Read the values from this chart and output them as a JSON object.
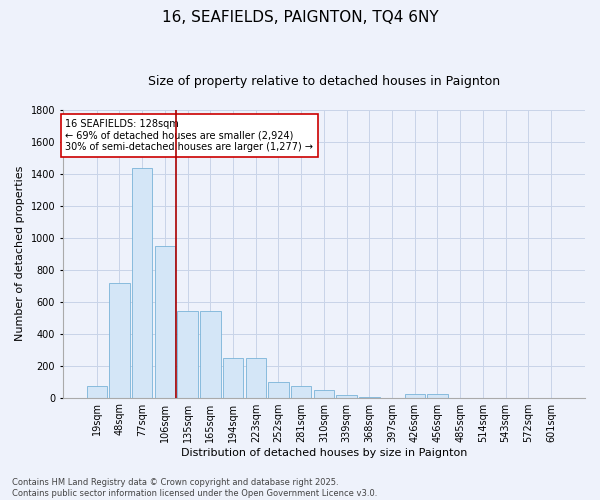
{
  "title": "16, SEAFIELDS, PAIGNTON, TQ4 6NY",
  "subtitle": "Size of property relative to detached houses in Paignton",
  "xlabel": "Distribution of detached houses by size in Paignton",
  "ylabel": "Number of detached properties",
  "categories": [
    "19sqm",
    "48sqm",
    "77sqm",
    "106sqm",
    "135sqm",
    "165sqm",
    "194sqm",
    "223sqm",
    "252sqm",
    "281sqm",
    "310sqm",
    "339sqm",
    "368sqm",
    "397sqm",
    "426sqm",
    "456sqm",
    "485sqm",
    "514sqm",
    "543sqm",
    "572sqm",
    "601sqm"
  ],
  "values": [
    75,
    720,
    1440,
    950,
    540,
    540,
    250,
    250,
    100,
    75,
    50,
    15,
    5,
    0,
    20,
    20,
    0,
    0,
    0,
    0,
    0
  ],
  "bar_color": "#d4e6f7",
  "bar_edge_color": "#7ab4d8",
  "vertical_line_x": 3.5,
  "annotation_text": "16 SEAFIELDS: 128sqm\n← 69% of detached houses are smaller (2,924)\n30% of semi-detached houses are larger (1,277) →",
  "annotation_box_color": "#ffffff",
  "annotation_box_edge": "#cc0000",
  "vline_color": "#aa0000",
  "ylim": [
    0,
    1800
  ],
  "yticks": [
    0,
    200,
    400,
    600,
    800,
    1000,
    1200,
    1400,
    1600,
    1800
  ],
  "background_color": "#eef2fb",
  "grid_color": "#c8d4e8",
  "footer": "Contains HM Land Registry data © Crown copyright and database right 2025.\nContains public sector information licensed under the Open Government Licence v3.0.",
  "title_fontsize": 11,
  "subtitle_fontsize": 9,
  "xlabel_fontsize": 8,
  "ylabel_fontsize": 8,
  "tick_fontsize": 7,
  "annot_fontsize": 7,
  "footer_fontsize": 6
}
